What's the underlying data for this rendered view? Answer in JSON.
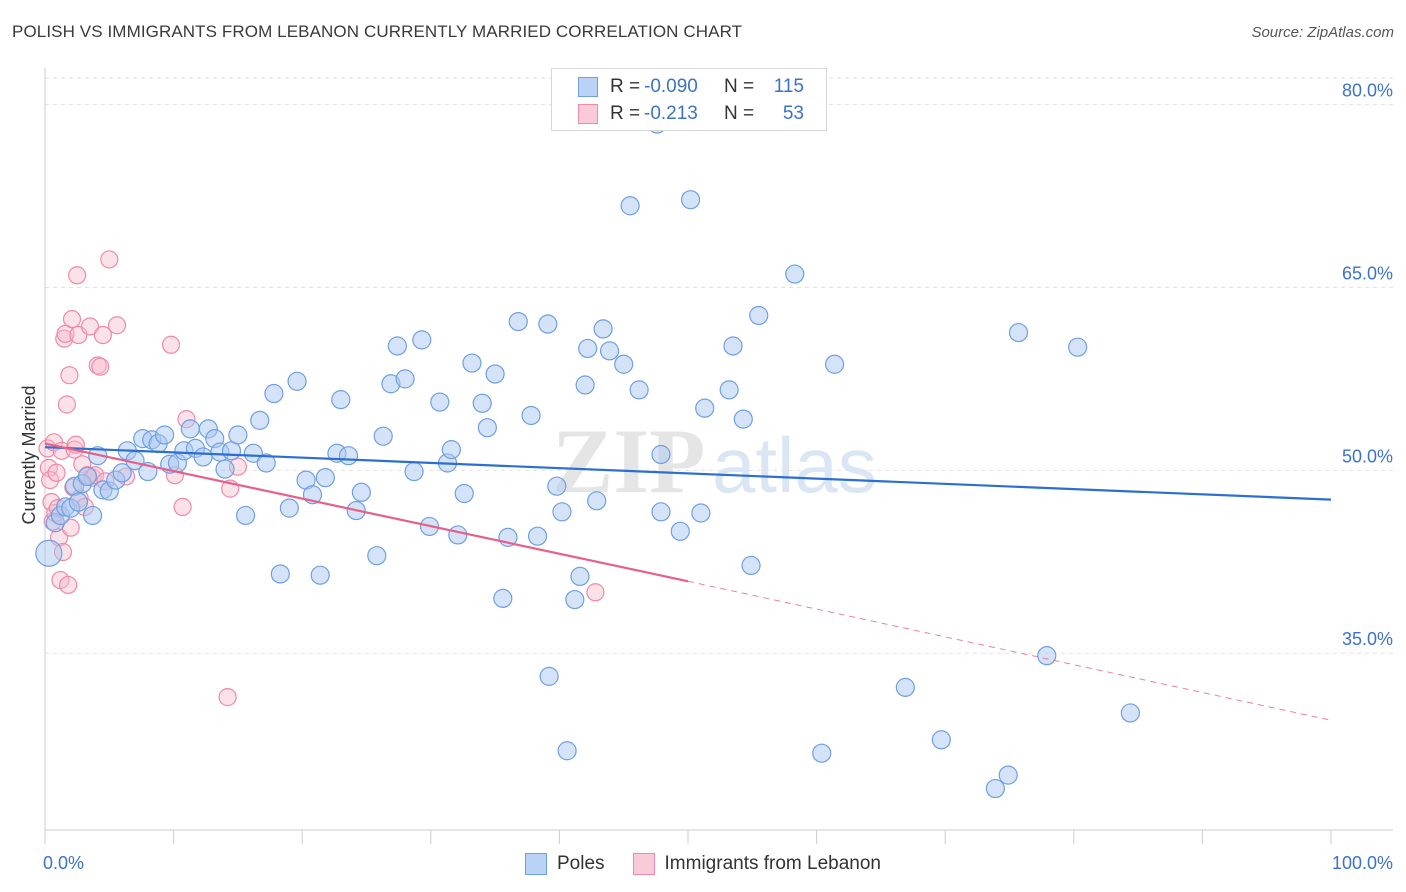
{
  "title": "POLISH VS IMMIGRANTS FROM LEBANON CURRENTLY MARRIED CORRELATION CHART",
  "source": "Source: ZipAtlas.com",
  "watermark": "ZIPatlas",
  "legend_top": [
    {
      "r_label": "R =",
      "r_value": "-0.090",
      "n_label": "N =",
      "n_value": "115",
      "color": "#6fa0e0"
    },
    {
      "r_label": "R =",
      "r_value": "-0.213",
      "n_label": "N =",
      "n_value": "53",
      "color": "#ef8aa8"
    }
  ],
  "colors": {
    "poles_fill": "#a9c8f2",
    "poles_stroke": "#6fa0e0",
    "poles_line": "#2c6fd1",
    "leb_fill": "#f7bccd",
    "leb_stroke": "#ef8aa8",
    "leb_line": "#e8608a"
  },
  "chart_data": {
    "type": "scatter",
    "title": "POLISH VS IMMIGRANTS FROM LEBANON CURRENTLY MARRIED CORRELATION CHART",
    "xlabel": "",
    "ylabel": "Currently Married",
    "xlim": [
      0,
      100
    ],
    "ylim": [
      20.5,
      83
    ],
    "x_tick_labels": [
      "0.0%",
      "100.0%"
    ],
    "y_ticks": [
      35,
      50,
      65,
      80
    ],
    "y_tick_labels": [
      "35.0%",
      "50.0%",
      "65.0%",
      "80.0%"
    ],
    "grid": "horizontal dashed",
    "legend": "bottom-center",
    "series": [
      {
        "name": "Poles",
        "trend": {
          "x": [
            0,
            100
          ],
          "y": [
            51.9,
            47.6
          ],
          "style": "solid"
        },
        "points": [
          [
            0.3,
            43.2
          ],
          [
            0.8,
            45.7
          ],
          [
            1.2,
            46.3
          ],
          [
            1.6,
            47.0
          ],
          [
            2.0,
            46.9
          ],
          [
            2.3,
            48.7
          ],
          [
            2.6,
            47.4
          ],
          [
            2.9,
            48.9
          ],
          [
            3.3,
            49.5
          ],
          [
            3.7,
            46.3
          ],
          [
            4.1,
            51.2
          ],
          [
            4.5,
            48.4
          ],
          [
            5.0,
            48.3
          ],
          [
            5.5,
            49.2
          ],
          [
            6.0,
            49.8
          ],
          [
            6.4,
            51.6
          ],
          [
            7.0,
            50.8
          ],
          [
            7.6,
            52.6
          ],
          [
            8.0,
            49.9
          ],
          [
            8.3,
            52.5
          ],
          [
            8.8,
            52.2
          ],
          [
            9.3,
            52.9
          ],
          [
            9.7,
            50.5
          ],
          [
            10.3,
            50.6
          ],
          [
            10.8,
            51.6
          ],
          [
            11.3,
            53.4
          ],
          [
            11.7,
            51.8
          ],
          [
            12.3,
            51.1
          ],
          [
            12.7,
            53.4
          ],
          [
            13.2,
            52.6
          ],
          [
            13.6,
            51.5
          ],
          [
            14.0,
            50.1
          ],
          [
            14.5,
            51.6
          ],
          [
            15.0,
            52.9
          ],
          [
            15.6,
            46.3
          ],
          [
            16.2,
            51.4
          ],
          [
            16.7,
            54.1
          ],
          [
            17.2,
            50.6
          ],
          [
            17.8,
            56.3
          ],
          [
            18.3,
            41.5
          ],
          [
            19.0,
            46.9
          ],
          [
            19.6,
            57.3
          ],
          [
            20.3,
            49.2
          ],
          [
            20.8,
            48.0
          ],
          [
            21.4,
            41.4
          ],
          [
            21.8,
            49.4
          ],
          [
            22.7,
            51.4
          ],
          [
            23.0,
            55.8
          ],
          [
            23.6,
            51.2
          ],
          [
            24.2,
            46.7
          ],
          [
            24.6,
            48.2
          ],
          [
            25.8,
            43.0
          ],
          [
            26.3,
            52.8
          ],
          [
            26.9,
            57.1
          ],
          [
            27.4,
            60.2
          ],
          [
            28.0,
            57.5
          ],
          [
            28.7,
            49.9
          ],
          [
            29.3,
            60.7
          ],
          [
            29.9,
            45.4
          ],
          [
            30.7,
            55.6
          ],
          [
            31.3,
            50.6
          ],
          [
            31.6,
            51.7
          ],
          [
            32.1,
            44.7
          ],
          [
            32.6,
            48.1
          ],
          [
            33.2,
            58.8
          ],
          [
            34.0,
            55.5
          ],
          [
            34.4,
            53.5
          ],
          [
            35.0,
            57.9
          ],
          [
            35.6,
            39.5
          ],
          [
            36.0,
            44.5
          ],
          [
            36.8,
            62.2
          ],
          [
            37.8,
            54.5
          ],
          [
            38.3,
            44.6
          ],
          [
            39.1,
            62.0
          ],
          [
            39.2,
            33.1
          ],
          [
            39.8,
            48.7
          ],
          [
            40.2,
            46.6
          ],
          [
            40.6,
            27.0
          ],
          [
            41.2,
            39.4
          ],
          [
            41.6,
            41.3
          ],
          [
            42.0,
            57.0
          ],
          [
            42.2,
            60.0
          ],
          [
            42.9,
            47.5
          ],
          [
            43.4,
            61.6
          ],
          [
            43.9,
            59.8
          ],
          [
            45.0,
            58.7
          ],
          [
            45.5,
            71.7
          ],
          [
            46.2,
            56.6
          ],
          [
            47.3,
            82.1
          ],
          [
            47.6,
            78.4
          ],
          [
            47.9,
            51.3
          ],
          [
            47.9,
            46.6
          ],
          [
            49.4,
            45.0
          ],
          [
            50.2,
            72.2
          ],
          [
            51.0,
            46.5
          ],
          [
            51.3,
            55.1
          ],
          [
            53.2,
            56.6
          ],
          [
            53.5,
            60.2
          ],
          [
            54.3,
            54.2
          ],
          [
            54.9,
            42.2
          ],
          [
            55.5,
            62.7
          ],
          [
            58.3,
            66.1
          ],
          [
            60.4,
            26.8
          ],
          [
            61.4,
            58.7
          ],
          [
            66.9,
            32.2
          ],
          [
            69.7,
            27.9
          ],
          [
            73.9,
            23.9
          ],
          [
            74.9,
            25.0
          ],
          [
            75.7,
            61.3
          ],
          [
            77.9,
            34.8
          ],
          [
            80.3,
            60.1
          ],
          [
            84.4,
            30.1
          ]
        ]
      },
      {
        "name": "Immigrants from Lebanon",
        "trend": {
          "x": [
            0,
            50.0
          ],
          "y": [
            52.2,
            40.9
          ],
          "style": "solid",
          "dashed_extension": {
            "x": [
              50.0,
              100
            ],
            "y": [
              40.9,
              29.5
            ]
          }
        },
        "points": [
          [
            0.2,
            51.8
          ],
          [
            0.3,
            50.2
          ],
          [
            0.4,
            49.2
          ],
          [
            0.5,
            47.4
          ],
          [
            0.6,
            45.8
          ],
          [
            0.7,
            52.3
          ],
          [
            0.8,
            46.5
          ],
          [
            0.9,
            49.8
          ],
          [
            1.0,
            46.9
          ],
          [
            1.1,
            44.5
          ],
          [
            1.2,
            41.0
          ],
          [
            1.3,
            51.6
          ],
          [
            1.4,
            43.3
          ],
          [
            1.5,
            60.8
          ],
          [
            1.6,
            61.2
          ],
          [
            1.7,
            55.4
          ],
          [
            1.8,
            40.6
          ],
          [
            1.9,
            57.8
          ],
          [
            2.0,
            45.3
          ],
          [
            2.1,
            62.4
          ],
          [
            2.2,
            48.6
          ],
          [
            2.3,
            51.7
          ],
          [
            2.4,
            52.1
          ],
          [
            2.5,
            66.0
          ],
          [
            2.6,
            61.1
          ],
          [
            2.7,
            47.7
          ],
          [
            2.9,
            50.5
          ],
          [
            3.1,
            47.0
          ],
          [
            3.3,
            49.6
          ],
          [
            3.5,
            61.8
          ],
          [
            3.7,
            49.4
          ],
          [
            3.9,
            49.6
          ],
          [
            4.1,
            58.6
          ],
          [
            4.3,
            58.5
          ],
          [
            4.5,
            61.1
          ],
          [
            4.7,
            49.1
          ],
          [
            5.0,
            67.3
          ],
          [
            5.6,
            61.9
          ],
          [
            6.3,
            49.5
          ],
          [
            9.8,
            60.3
          ],
          [
            10.1,
            49.6
          ],
          [
            10.7,
            47.0
          ],
          [
            11.0,
            54.2
          ],
          [
            14.2,
            31.4
          ],
          [
            14.4,
            48.5
          ],
          [
            15.0,
            50.3
          ],
          [
            42.8,
            40.0
          ]
        ]
      }
    ]
  },
  "legend_bottom": [
    {
      "label": "Poles"
    },
    {
      "label": "Immigrants from Lebanon"
    }
  ]
}
